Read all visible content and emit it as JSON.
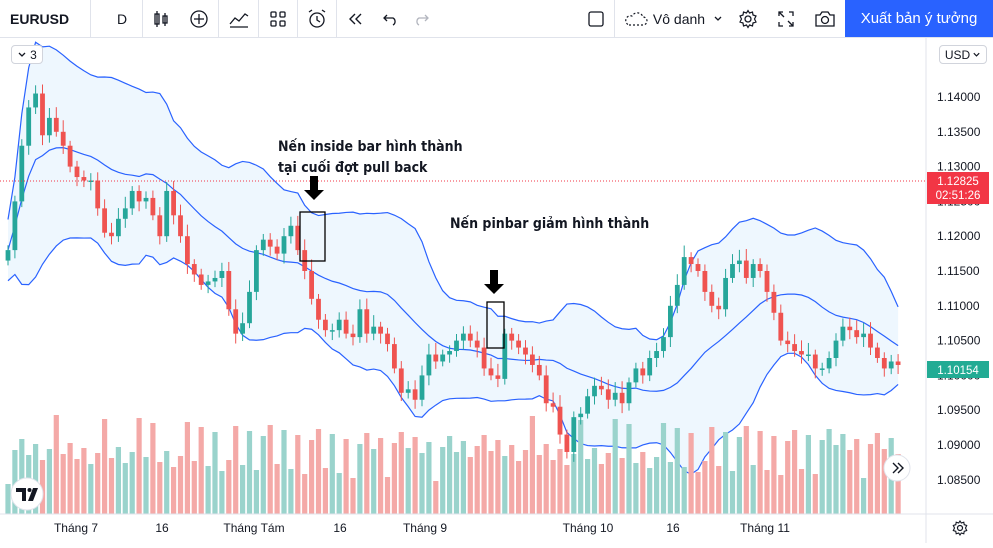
{
  "toolbar": {
    "symbol": "EURUSD",
    "interval": "D",
    "account_label": "Vô danh",
    "publish_label": "Xuất bản ý tưởng"
  },
  "chart_controls": {
    "collapse_count": "3",
    "currency": "USD"
  },
  "chart_data": {
    "type": "candlestick",
    "symbol": "EURUSD",
    "interval": "D",
    "y_axis": {
      "ticks": [
        "1.14000",
        "1.13500",
        "1.13000",
        "1.12500",
        "1.12000",
        "1.11500",
        "1.11000",
        "1.10500",
        "1.10000",
        "1.09500",
        "1.09000",
        "1.08500"
      ],
      "range": [
        1.083,
        1.1445
      ]
    },
    "x_axis": {
      "ticks": [
        "Tháng 7",
        "16",
        "Tháng Tám",
        "16",
        "Tháng 9",
        "Tháng 10",
        "16",
        "Tháng 11"
      ]
    },
    "price_labels": {
      "bid_price": "1.12825",
      "countdown": "02:51:26",
      "last_price": "1.10154"
    },
    "annotations": [
      {
        "text": "Nến inside bar hình thành\ntại cuối đợt pull back"
      },
      {
        "text": "Nến pinbar giảm hình thành"
      }
    ],
    "indicators": [
      "Bollinger Bands",
      "Volume"
    ],
    "colors": {
      "up": "#26a69a",
      "down": "#ef5350",
      "bands": "#2962ff",
      "band_fill": "#e3f2fd",
      "price_label": "#f23645",
      "last_label": "#22ab94"
    },
    "candles_close": [
      1.118,
      1.125,
      1.133,
      1.1385,
      1.1405,
      1.1345,
      1.137,
      1.135,
      1.133,
      1.13,
      1.1285,
      1.128,
      1.128,
      1.124,
      1.1205,
      1.12,
      1.1225,
      1.124,
      1.1265,
      1.125,
      1.1255,
      1.123,
      1.12,
      1.1265,
      1.123,
      1.12,
      1.116,
      1.1145,
      1.113,
      1.1135,
      1.114,
      1.115,
      1.1095,
      1.106,
      1.1075,
      1.112,
      1.118,
      1.1195,
      1.1185,
      1.1175,
      1.12,
      1.1215,
      1.118,
      1.115,
      1.111,
      1.108,
      1.1065,
      1.1065,
      1.108,
      1.106,
      1.1055,
      1.1095,
      1.106,
      1.107,
      1.106,
      1.1045,
      1.101,
      1.0975,
      1.098,
      1.0965,
      1.1,
      1.103,
      1.102,
      1.103,
      1.1035,
      1.105,
      1.106,
      1.105,
      1.104,
      1.101,
      1.1,
      1.0995,
      1.106,
      1.105,
      1.104,
      1.103,
      1.1015,
      1.1,
      1.096,
      1.0955,
      1.0915,
      1.089,
      1.094,
      1.0945,
      1.097,
      1.0985,
      1.098,
      1.0965,
      1.0975,
      1.096,
      1.099,
      1.101,
      1.1,
      1.1025,
      1.1035,
      1.1055,
      1.11,
      1.113,
      1.117,
      1.116,
      1.115,
      1.112,
      1.11,
      1.1095,
      1.114,
      1.116,
      1.1165,
      1.114,
      1.116,
      1.115,
      1.112,
      1.109,
      1.105,
      1.1045,
      1.1035,
      1.103,
      1.103,
      1.101,
      1.101,
      1.1025,
      1.105,
      1.107,
      1.1065,
      1.1055,
      1.106,
      1.104,
      1.1025,
      1.101,
      1.102,
      1.1015
    ]
  }
}
